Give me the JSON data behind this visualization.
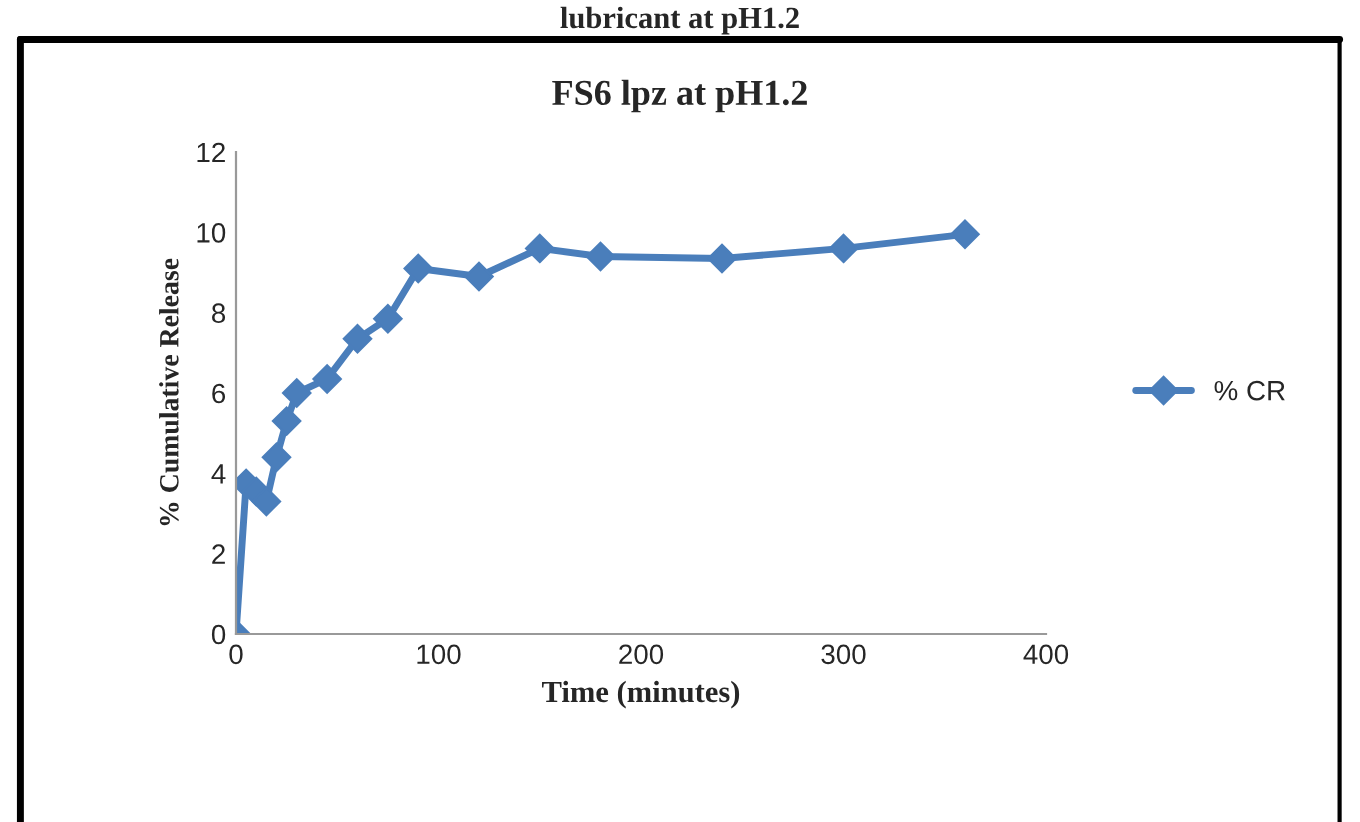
{
  "chart_data": {
    "type": "line",
    "title": "FS6 lpz at pH1.2",
    "xlabel": "Time (minutes)",
    "ylabel": "% Cumulative Release",
    "annotations": [
      "lubricant at pH1.2"
    ],
    "x": [
      0,
      5,
      10,
      15,
      20,
      25,
      30,
      45,
      60,
      75,
      90,
      120,
      150,
      180,
      240,
      300,
      360
    ],
    "series": [
      {
        "name": "% CR",
        "color": "#4a7ebb",
        "values": [
          0,
          3.75,
          3.55,
          3.3,
          4.4,
          5.3,
          6.0,
          6.35,
          7.35,
          7.85,
          9.1,
          8.9,
          9.6,
          9.4,
          9.35,
          9.6,
          9.95
        ]
      }
    ],
    "xlim": [
      0,
      400
    ],
    "xticks": [
      0,
      100,
      200,
      300,
      400
    ],
    "ylim": [
      0,
      12
    ],
    "yticks": [
      0,
      2,
      4,
      6,
      8,
      10,
      12
    ],
    "marker": "diamond",
    "line_style": "solid",
    "legend": "right",
    "grid": false
  }
}
